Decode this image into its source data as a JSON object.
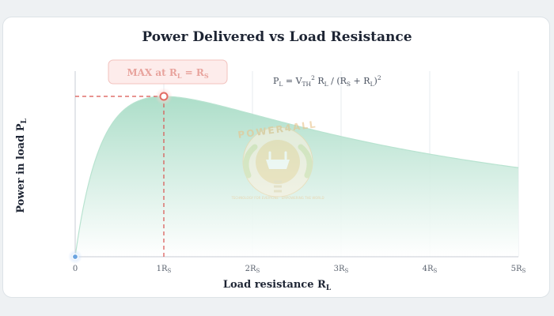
{
  "chart_data": {
    "type": "area",
    "title": "Power Delivered vs Load Resistance",
    "xlabel": {
      "main": "Load resistance R",
      "sub": "L"
    },
    "ylabel": {
      "main": "Power in load P",
      "sub": "L"
    },
    "xlim": [
      0,
      5
    ],
    "x_ticks": [
      {
        "value": 0,
        "main": "0",
        "sub": ""
      },
      {
        "value": 1,
        "main": "1R",
        "sub": "S"
      },
      {
        "value": 2,
        "main": "2R",
        "sub": "S"
      },
      {
        "value": 3,
        "main": "3R",
        "sub": "S"
      },
      {
        "value": 4,
        "main": "4R",
        "sub": "S"
      },
      {
        "value": 5,
        "main": "5R",
        "sub": "S"
      }
    ],
    "curve": "P = x / (1 + x)^2 (normalized, x = R_L / R_S)",
    "peak": {
      "x": 1,
      "y": 0.25
    },
    "formula": "P_L = V_TH^2 R_L / (R_S + R_L)^2",
    "annotation": {
      "main": "MAX at R",
      "sub1": "L",
      "mid": " = R",
      "sub2": "S"
    },
    "grid": "vertical",
    "colors": {
      "fill_top": "#a8dcc6",
      "fill_bottom": "#ffffff",
      "curve": "#b8e3d0",
      "peak_marker": "#e26b63",
      "origin_marker": "#6aa3e0",
      "guide": "#d9534f",
      "annotation_bg": "#fdeceb",
      "annotation_border": "#f2c2be"
    },
    "watermark": {
      "text": "POWER4ALL",
      "tagline": "TECHNOLOGY FOR EVERYONE · EMPOWERING THE WORLD"
    }
  }
}
